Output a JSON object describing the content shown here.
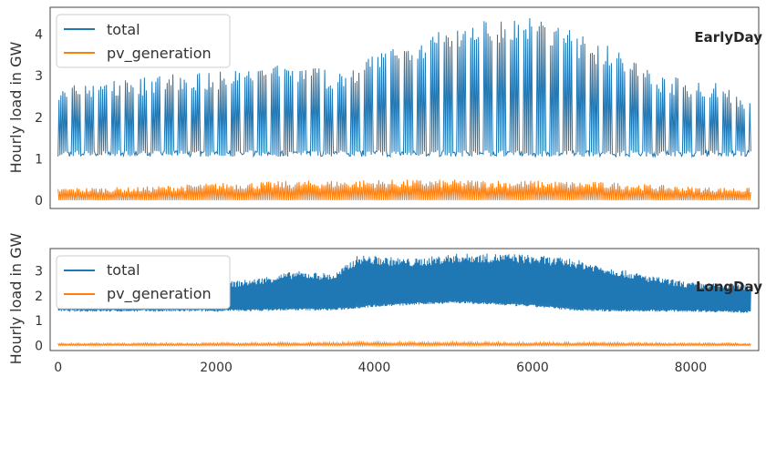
{
  "chart_data": [
    {
      "type": "line",
      "title": "",
      "annotation": "EarlyDay",
      "xlabel": "",
      "ylabel": "Hourly load in GW",
      "xlim": [
        -100,
        8860
      ],
      "ylim": [
        -0.2,
        4.65
      ],
      "yticks": [
        "0",
        "1",
        "2",
        "3",
        "4"
      ],
      "grid": false,
      "legend": "top-left",
      "x_range": [
        0,
        8760
      ],
      "series": [
        {
          "name": "total",
          "color": "#1f77b4",
          "baseline_gw": 1.05,
          "daily_peak_envelope_gw": [
            [
              0,
              2.7
            ],
            [
              400,
              2.9
            ],
            [
              1000,
              2.95
            ],
            [
              1500,
              3.05
            ],
            [
              2000,
              3.1
            ],
            [
              2500,
              3.2
            ],
            [
              3000,
              3.35
            ],
            [
              3500,
              3.1
            ],
            [
              4000,
              3.55
            ],
            [
              4500,
              3.9
            ],
            [
              5000,
              4.15
            ],
            [
              5500,
              4.45
            ],
            [
              6000,
              4.5
            ],
            [
              6500,
              4.1
            ],
            [
              7000,
              3.7
            ],
            [
              7500,
              3.1
            ],
            [
              8000,
              2.9
            ],
            [
              8400,
              2.9
            ],
            [
              8760,
              2.35
            ]
          ]
        },
        {
          "name": "pv_generation",
          "color": "#ff7f0e",
          "daily_peak_envelope_gw": [
            [
              0,
              0.3
            ],
            [
              1000,
              0.32
            ],
            [
              2000,
              0.42
            ],
            [
              3000,
              0.47
            ],
            [
              4000,
              0.5
            ],
            [
              5000,
              0.5
            ],
            [
              6000,
              0.48
            ],
            [
              7000,
              0.44
            ],
            [
              8000,
              0.33
            ],
            [
              8760,
              0.3
            ]
          ]
        }
      ]
    },
    {
      "type": "line",
      "title": "",
      "annotation": "LongDay",
      "xlabel": "",
      "ylabel": "Hourly load in GW",
      "xlim": [
        -100,
        8860
      ],
      "ylim": [
        -0.2,
        3.9
      ],
      "xticks": [
        "0",
        "2000",
        "4000",
        "6000",
        "8000"
      ],
      "yticks": [
        "0",
        "1",
        "2",
        "3"
      ],
      "grid": false,
      "legend": "top-left",
      "x_range": [
        0,
        8760
      ],
      "series": [
        {
          "name": "total",
          "color": "#1f77b4",
          "trough_envelope_gw": [
            [
              0,
              1.4
            ],
            [
              2000,
              1.4
            ],
            [
              3000,
              1.45
            ],
            [
              3500,
              1.45
            ],
            [
              4000,
              1.6
            ],
            [
              5000,
              1.75
            ],
            [
              6000,
              1.6
            ],
            [
              6500,
              1.45
            ],
            [
              7000,
              1.4
            ],
            [
              8000,
              1.4
            ],
            [
              8760,
              1.35
            ]
          ],
          "peak_envelope_gw": [
            [
              0,
              2.4
            ],
            [
              1000,
              2.4
            ],
            [
              1800,
              2.45
            ],
            [
              2500,
              2.7
            ],
            [
              3000,
              3.0
            ],
            [
              3500,
              2.9
            ],
            [
              3800,
              3.65
            ],
            [
              4500,
              3.5
            ],
            [
              5000,
              3.7
            ],
            [
              5800,
              3.7
            ],
            [
              6500,
              3.5
            ],
            [
              7000,
              3.15
            ],
            [
              7500,
              2.8
            ],
            [
              8000,
              2.55
            ],
            [
              8760,
              2.45
            ]
          ]
        },
        {
          "name": "pv_generation",
          "color": "#ff7f0e",
          "daily_peak_envelope_gw": [
            [
              0,
              0.1
            ],
            [
              2000,
              0.11
            ],
            [
              4000,
              0.15
            ],
            [
              6000,
              0.14
            ],
            [
              8760,
              0.1
            ]
          ]
        }
      ]
    }
  ]
}
